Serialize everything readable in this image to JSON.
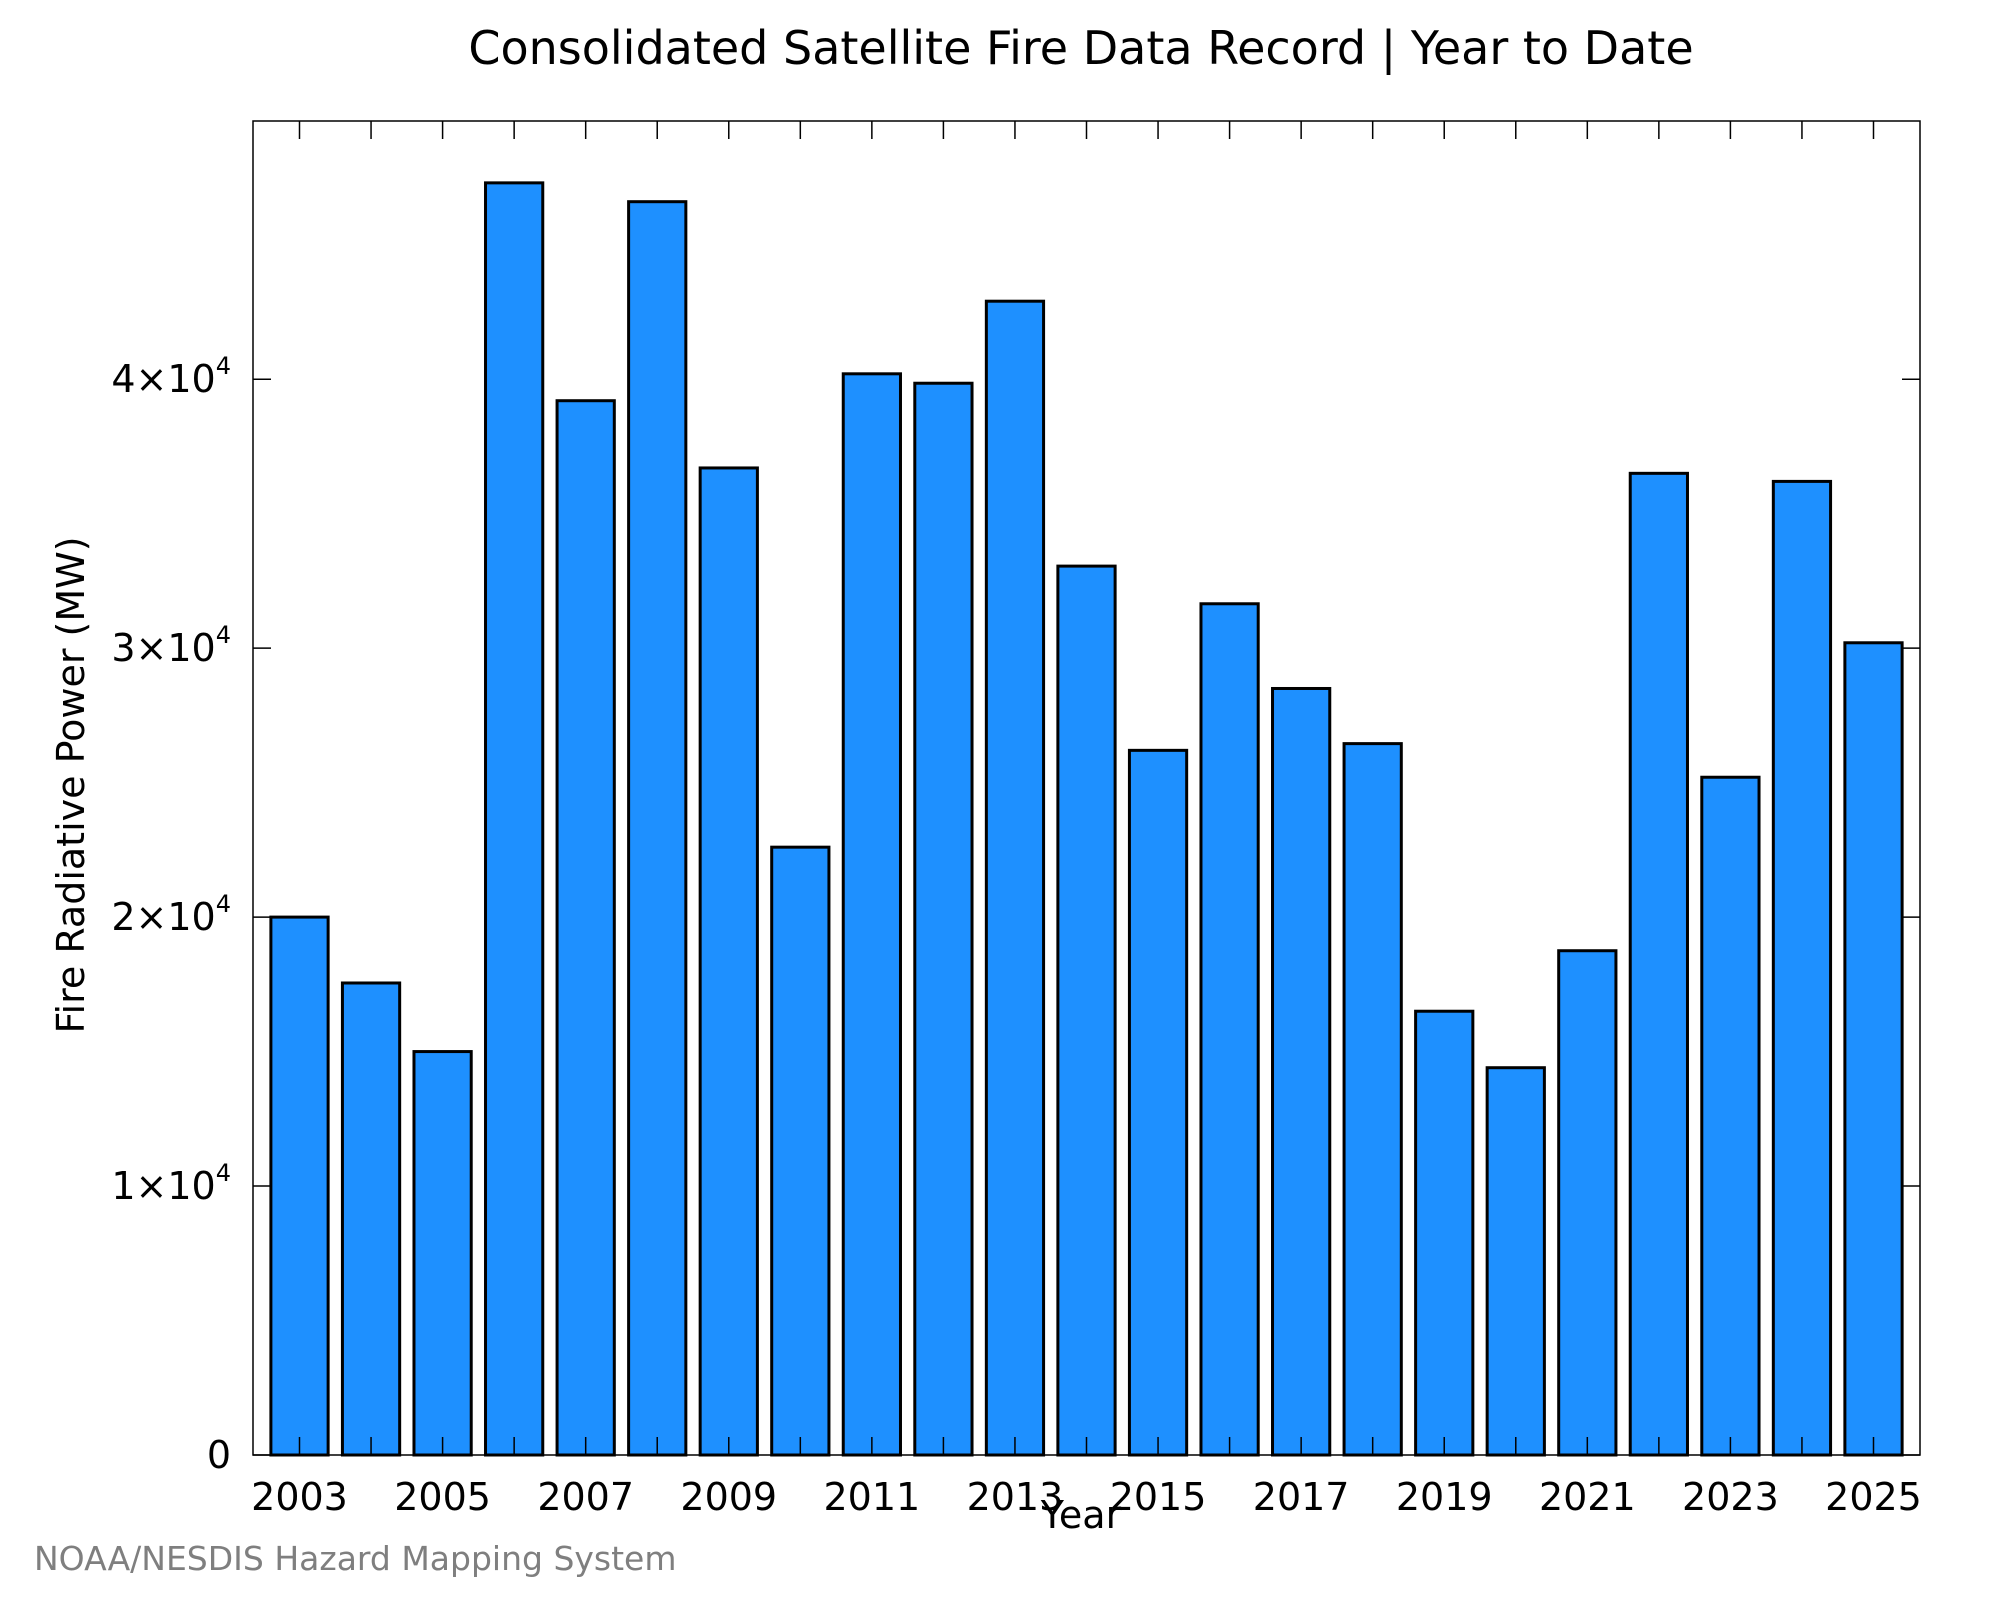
{
  "chart_data": {
    "type": "bar",
    "title": "Consolidated Satellite Fire Data Record | Year to Date",
    "xlabel": "Year",
    "ylabel": "Fire Radiative Power (MW)",
    "credit": "NOAA/NESDIS Hazard Mapping System",
    "bar_color": "#1e90ff",
    "bar_edge_color": "#000000",
    "categories": [
      "2003",
      "2004",
      "2005",
      "2006",
      "2007",
      "2008",
      "2009",
      "2010",
      "2011",
      "2012",
      "2013",
      "2014",
      "2015",
      "2016",
      "2017",
      "2018",
      "2019",
      "2020",
      "2021",
      "2022",
      "2023",
      "2024",
      "2025"
    ],
    "values": [
      20000,
      17550,
      15000,
      47300,
      39200,
      46600,
      36700,
      22600,
      40200,
      39850,
      42900,
      33050,
      26200,
      31650,
      28500,
      26450,
      16500,
      14400,
      18750,
      36500,
      25200,
      36200,
      30200
    ],
    "xlim": [
      2002.35,
      2025.65
    ],
    "ylim": [
      0,
      49600
    ],
    "x_ticks": [
      {
        "value": 2003,
        "label": "2003"
      },
      {
        "value": 2005,
        "label": "2005"
      },
      {
        "value": 2007,
        "label": "2007"
      },
      {
        "value": 2009,
        "label": "2009"
      },
      {
        "value": 2011,
        "label": "2011"
      },
      {
        "value": 2013,
        "label": "2013"
      },
      {
        "value": 2015,
        "label": "2015"
      },
      {
        "value": 2017,
        "label": "2017"
      },
      {
        "value": 2019,
        "label": "2019"
      },
      {
        "value": 2021,
        "label": "2021"
      },
      {
        "value": 2023,
        "label": "2023"
      },
      {
        "value": 2025,
        "label": "2025"
      }
    ],
    "y_ticks": [
      {
        "value": 0,
        "mantissa": "0",
        "exponent": ""
      },
      {
        "value": 10000,
        "mantissa": "1×10",
        "exponent": "4"
      },
      {
        "value": 20000,
        "mantissa": "2×10",
        "exponent": "4"
      },
      {
        "value": 30000,
        "mantissa": "3×10",
        "exponent": "4"
      },
      {
        "value": 40000,
        "mantissa": "4×10",
        "exponent": "4"
      }
    ],
    "grid": false,
    "legend": "none"
  }
}
